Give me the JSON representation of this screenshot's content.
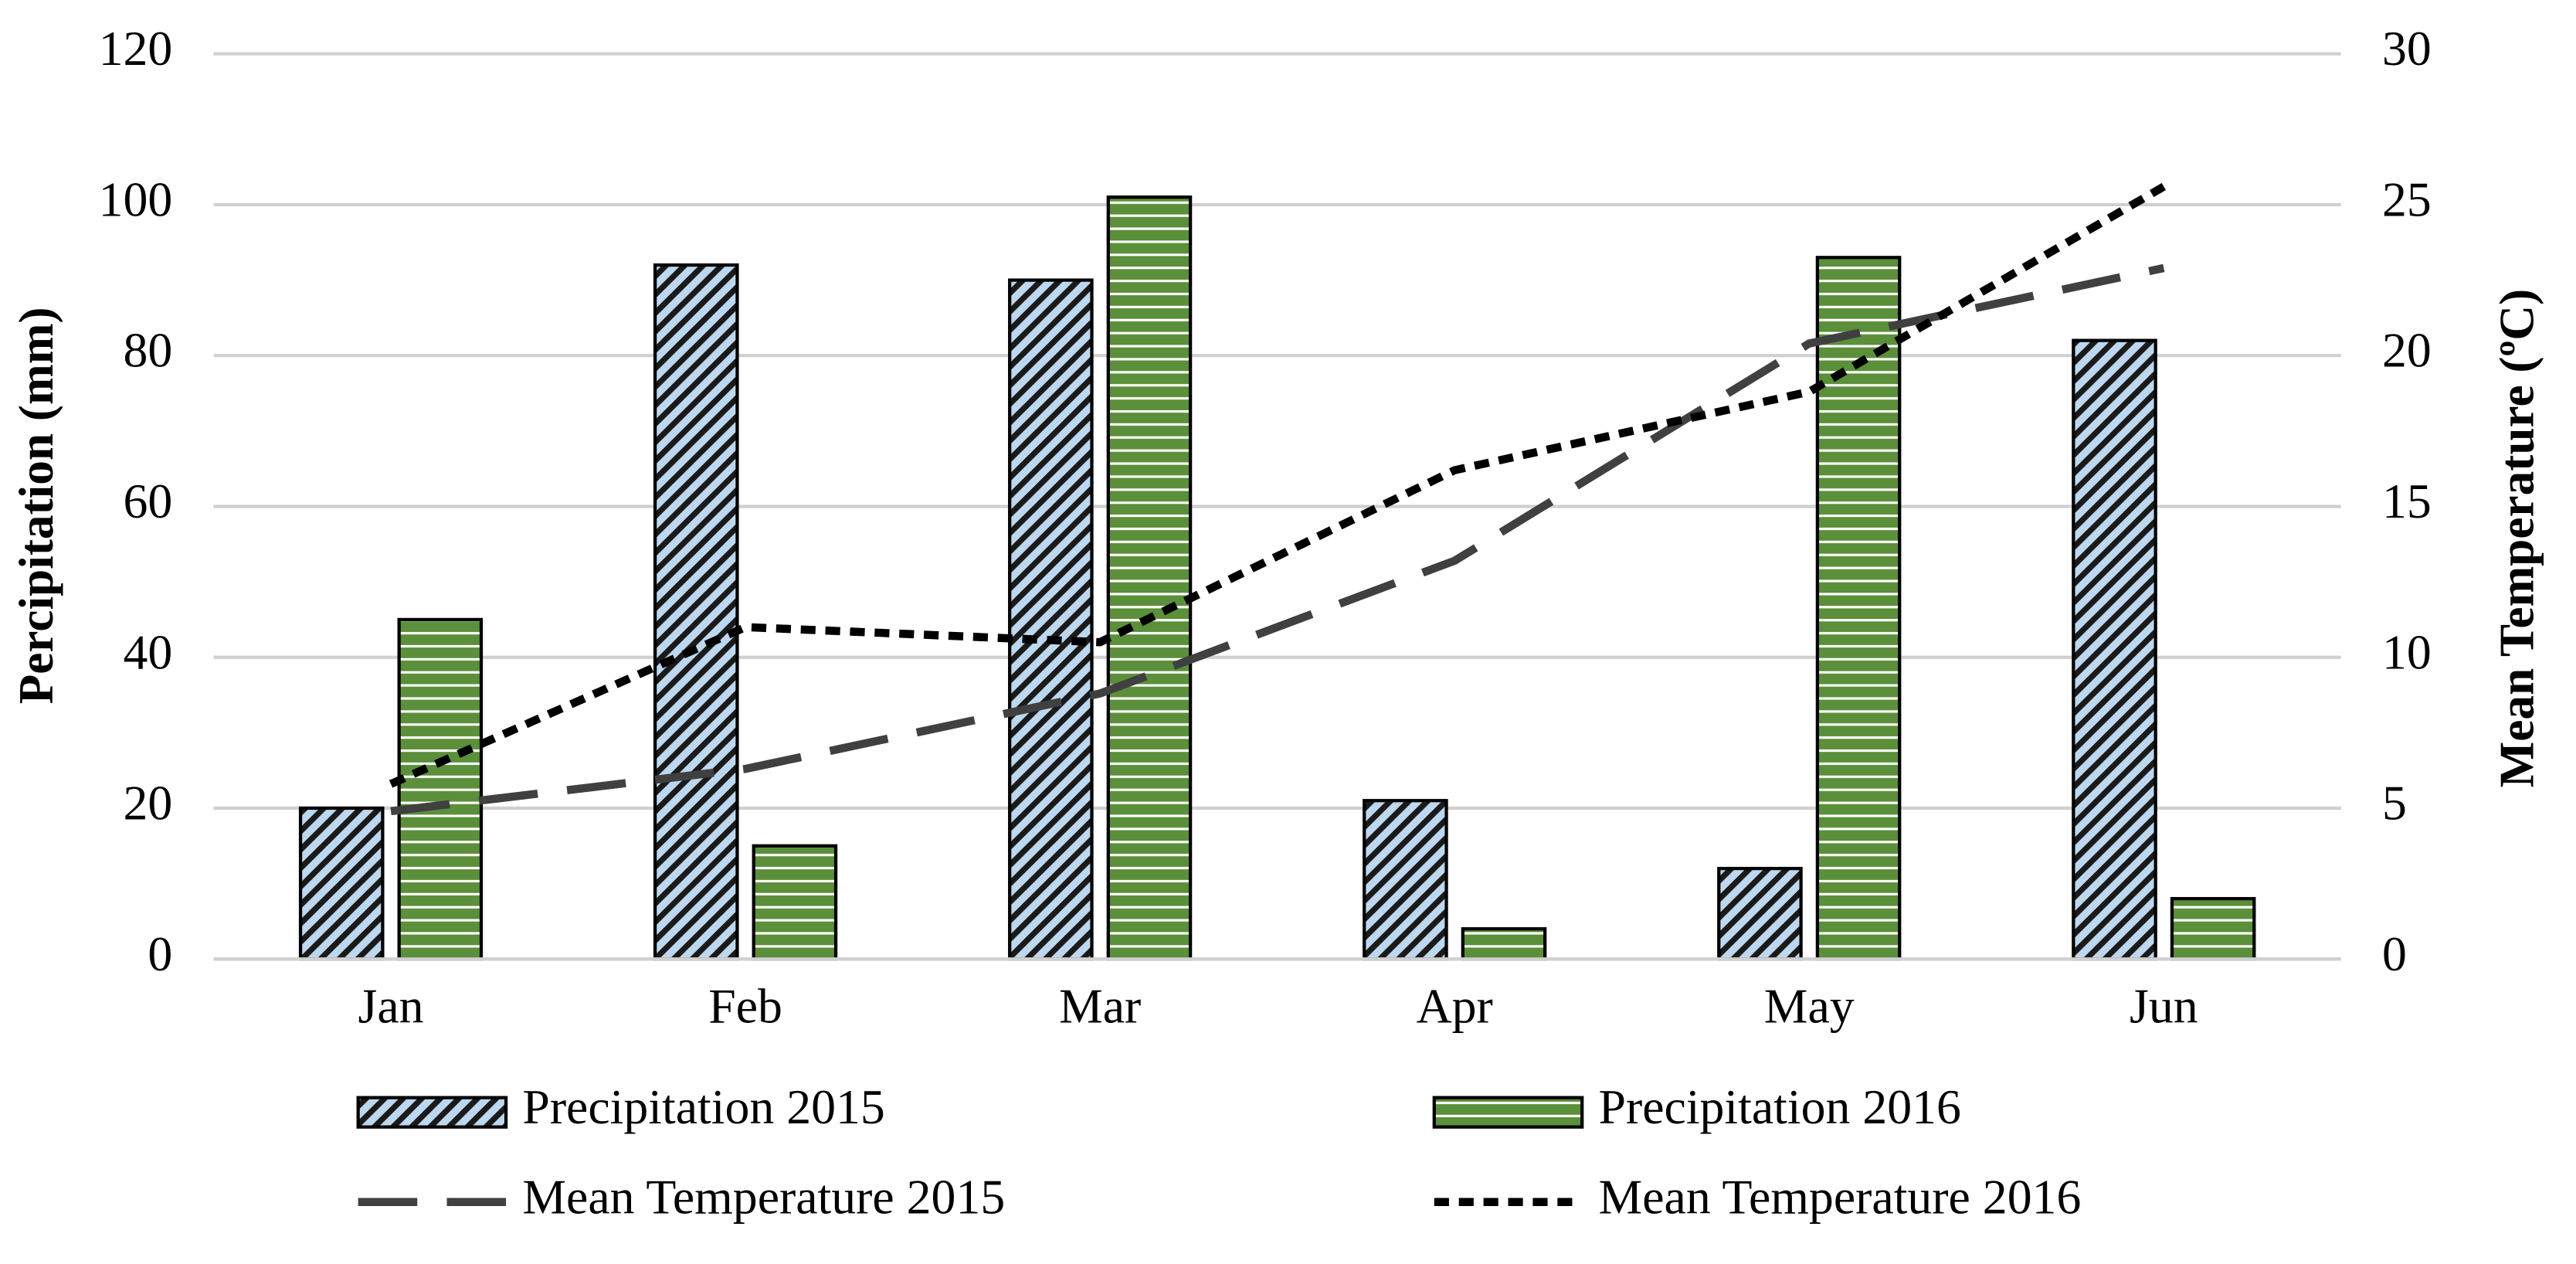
{
  "chart_data": {
    "type": "bar",
    "categories": [
      "Jan",
      "Feb",
      "Mar",
      "Apr",
      "May",
      "Jun"
    ],
    "ylabel": "Percipitation (mm)",
    "y2label": "Mean Temperature (ºC)",
    "ylim": [
      0,
      120
    ],
    "yticks": [
      0,
      20,
      40,
      60,
      80,
      100,
      120
    ],
    "y2lim": [
      0,
      30
    ],
    "y2ticks": [
      0,
      5,
      10,
      15,
      20,
      25,
      30
    ],
    "grid": true,
    "series": [
      {
        "name": "Precipitation 2015",
        "type": "bar",
        "color": "#bdd7ee",
        "hatch": "diagonal",
        "values": [
          20,
          92,
          90,
          21,
          12,
          82
        ]
      },
      {
        "name": "Precipitation 2016",
        "type": "bar",
        "color": "#5b8f3a",
        "hatch": "horizontal",
        "values": [
          45,
          15,
          101,
          4,
          93,
          8
        ]
      },
      {
        "name": "Mean Temperature 2015",
        "type": "line",
        "axis": "y2",
        "color": "#404040",
        "dash": "long-dash",
        "values": [
          4.9,
          6.3,
          8.8,
          13.2,
          20.4,
          22.9
        ]
      },
      {
        "name": "Mean Temperature 2016",
        "type": "line",
        "axis": "y2",
        "color": "#000000",
        "dash": "dotted",
        "values": [
          5.8,
          11.0,
          10.5,
          16.2,
          18.8,
          25.6
        ]
      }
    ],
    "legend": "bottom"
  }
}
